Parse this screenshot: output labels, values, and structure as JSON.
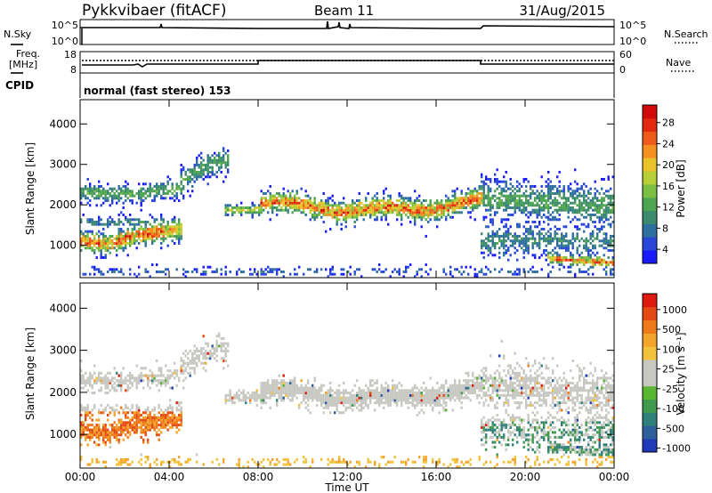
{
  "header": {
    "station": "Pykkvibaer (fitACF)",
    "beam": "Beam 11",
    "date": "31/Aug/2015"
  },
  "strip_sky": {
    "left_label": "N.Sky",
    "left_ticks": [
      "10^5",
      "10^0"
    ],
    "right_label": "N.Search",
    "right_ticks": [
      "10^5",
      "10^0"
    ]
  },
  "strip_freq": {
    "left_label_1": "Freq.",
    "left_label_2": "[MHz]",
    "left_ticks": [
      "18",
      "8"
    ],
    "right_label": "Nave",
    "right_ticks": [
      "60",
      "0"
    ],
    "cpid_label": "CPID",
    "cpid_value": "normal (fast stereo) 153"
  },
  "chart_data": [
    {
      "type": "heatmap",
      "name": "power",
      "ylabel": "Slant Range [km]",
      "ylim": [
        200,
        4600
      ],
      "yticks": [
        "4000",
        "3000",
        "2000",
        "1000"
      ],
      "xlim": [
        0,
        24
      ],
      "colorbar_label": "Power [dB]",
      "colorbar_ticks": [
        "28",
        "24",
        "20",
        "16",
        "12",
        "8",
        "4"
      ],
      "colors": [
        "#1a1aff",
        "#2846d8",
        "#2f6fa0",
        "#3b8a6e",
        "#4ea54f",
        "#7cc043",
        "#b9cf37",
        "#e9c32a",
        "#f4901f",
        "#ee5b1a",
        "#e22a12",
        "#d10a0a"
      ]
    },
    {
      "type": "heatmap",
      "name": "velocity",
      "ylabel": "Slant Range [km]",
      "ylim": [
        200,
        4600
      ],
      "yticks": [
        "4000",
        "3000",
        "2000",
        "1000"
      ],
      "xlim": [
        0,
        24
      ],
      "xticks": [
        "00:00",
        "04:00",
        "08:00",
        "12:00",
        "16:00",
        "20:00",
        "00:00"
      ],
      "xlabel": "Time UT",
      "colorbar_label": "Velocity [m s⁻¹]",
      "colorbar_ticks": [
        "1000",
        "500",
        "100",
        "25",
        "-25",
        "-100",
        "-500",
        "-1000"
      ],
      "colors": [
        "#1e3ab8",
        "#2d5f9c",
        "#2f7f7a",
        "#3f9a4d",
        "#58b632",
        "#c8c8c2",
        "#c8c8c2",
        "#f2c23a",
        "#f3a42a",
        "#ee7a1a",
        "#e64a14",
        "#dd1a10"
      ]
    }
  ]
}
